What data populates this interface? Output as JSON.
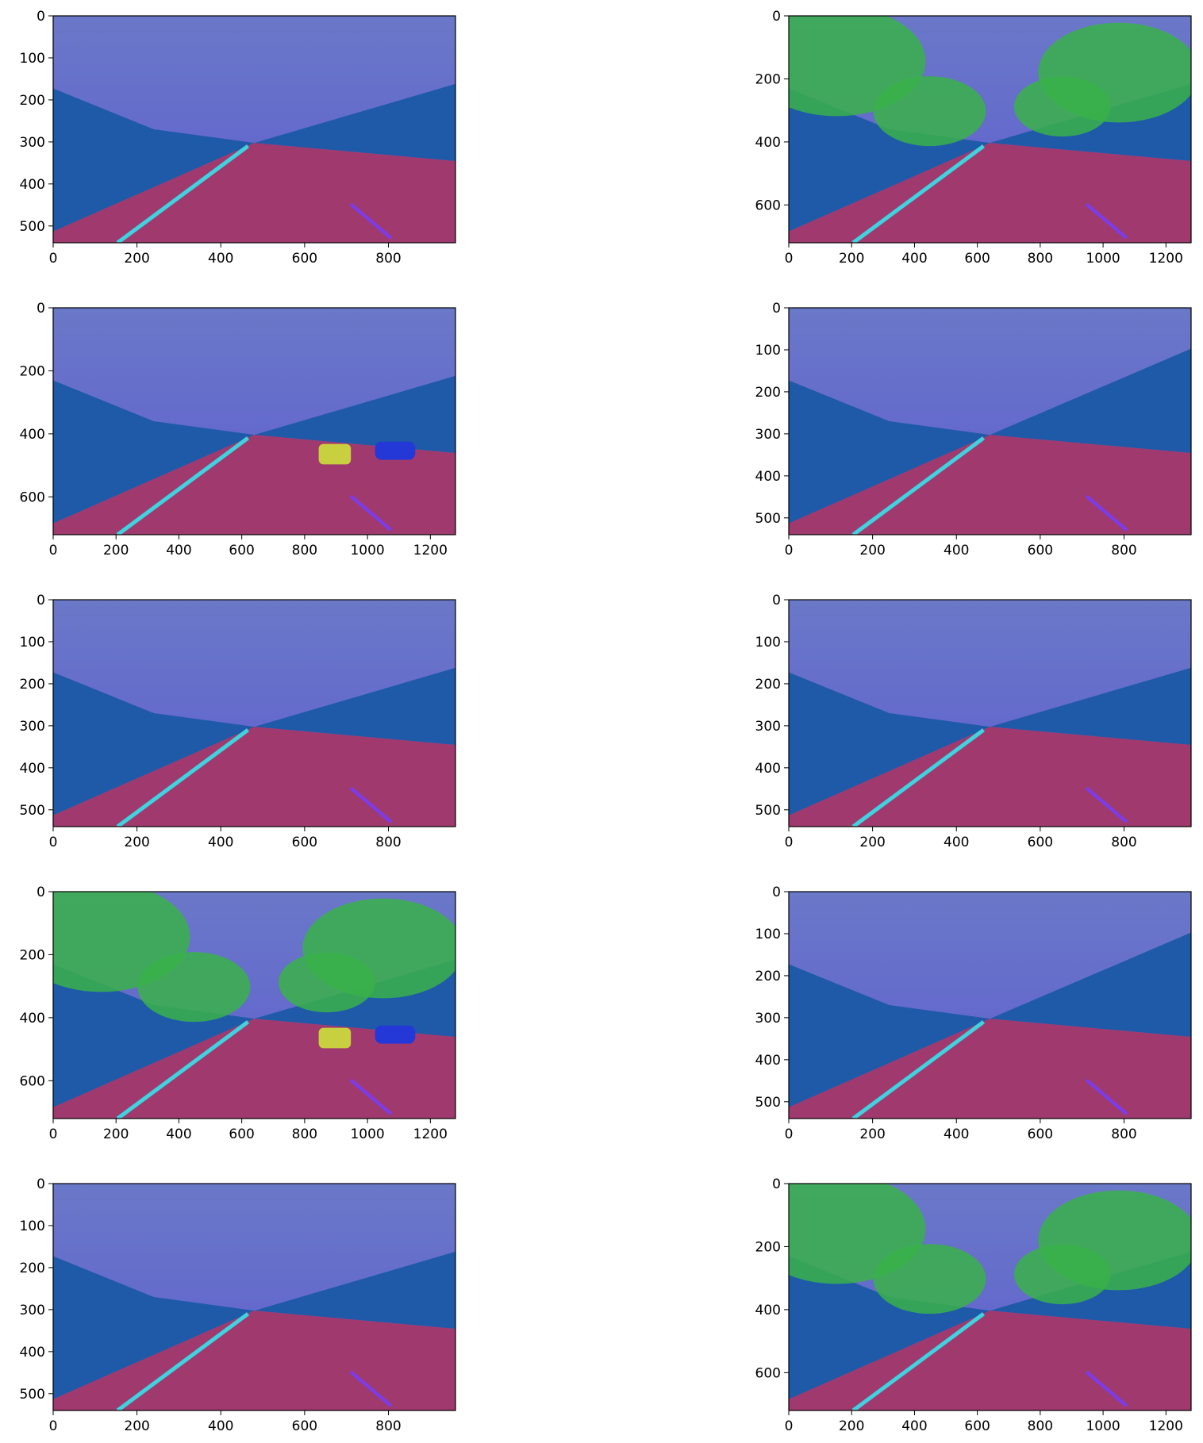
{
  "figure": {
    "panels": [
      {
        "x_max": 960,
        "y_max": 540,
        "x_ticks": [
          0,
          200,
          400,
          600,
          800
        ],
        "y_ticks": [
          0,
          100,
          200,
          300,
          400,
          500
        ],
        "variant": "plain"
      },
      {
        "x_max": 1280,
        "y_max": 720,
        "x_ticks": [
          0,
          200,
          400,
          600,
          800,
          1000,
          1200
        ],
        "y_ticks": [
          0,
          200,
          400,
          600
        ],
        "variant": "trees"
      },
      {
        "x_max": 1280,
        "y_max": 720,
        "x_ticks": [
          0,
          200,
          400,
          600,
          800,
          1000,
          1200
        ],
        "y_ticks": [
          0,
          200,
          400,
          600
        ],
        "variant": "cars"
      },
      {
        "x_max": 960,
        "y_max": 540,
        "x_ticks": [
          0,
          200,
          400,
          600,
          800
        ],
        "y_ticks": [
          0,
          100,
          200,
          300,
          400,
          500
        ],
        "variant": "right-bank"
      },
      {
        "x_max": 960,
        "y_max": 540,
        "x_ticks": [
          0,
          200,
          400,
          600,
          800
        ],
        "y_ticks": [
          0,
          100,
          200,
          300,
          400,
          500
        ],
        "variant": "plain"
      },
      {
        "x_max": 960,
        "y_max": 540,
        "x_ticks": [
          0,
          200,
          400,
          600,
          800
        ],
        "y_ticks": [
          0,
          100,
          200,
          300,
          400,
          500
        ],
        "variant": "plain"
      },
      {
        "x_max": 1280,
        "y_max": 720,
        "x_ticks": [
          0,
          200,
          400,
          600,
          800,
          1000,
          1200
        ],
        "y_ticks": [
          0,
          200,
          400,
          600
        ],
        "variant": "cars-trees"
      },
      {
        "x_max": 960,
        "y_max": 540,
        "x_ticks": [
          0,
          200,
          400,
          600,
          800
        ],
        "y_ticks": [
          0,
          100,
          200,
          300,
          400,
          500
        ],
        "variant": "right-bank"
      },
      {
        "x_max": 960,
        "y_max": 540,
        "x_ticks": [
          0,
          200,
          400,
          600,
          800
        ],
        "y_ticks": [
          0,
          100,
          200,
          300,
          400,
          500
        ],
        "variant": "plain"
      },
      {
        "x_max": 1280,
        "y_max": 720,
        "x_ticks": [
          0,
          200,
          400,
          600,
          800,
          1000,
          1200
        ],
        "y_ticks": [
          0,
          200,
          400,
          600
        ],
        "variant": "trees"
      }
    ],
    "colors": {
      "sky": "#5f5fcf",
      "sky_top": "#6a78c8",
      "road": "#a03a6e",
      "bank": "#1e5aa8",
      "lane": "#3fd3e0",
      "vegetation": "#39b24a",
      "car_yellow": "#c8d040",
      "car_blue": "#2438d8"
    }
  }
}
